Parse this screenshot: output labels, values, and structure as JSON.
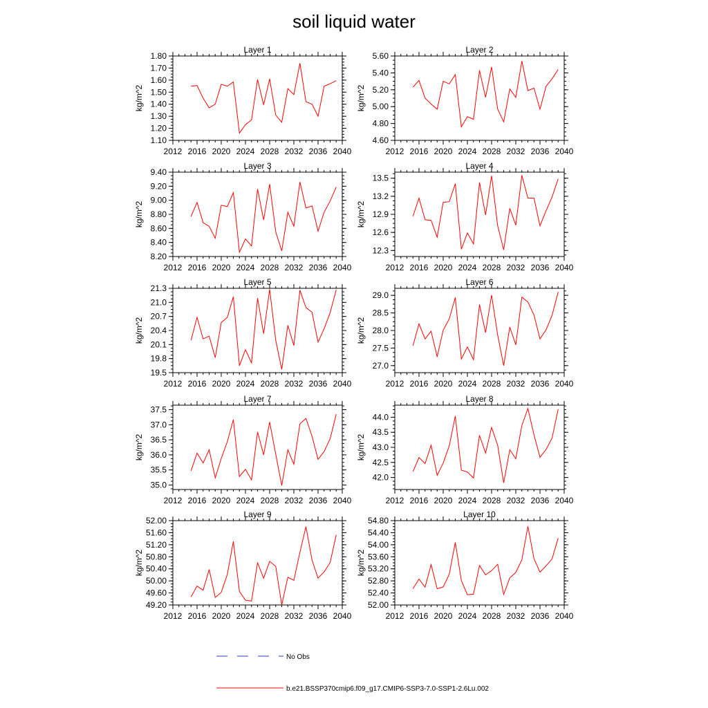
{
  "title": "soil liquid water",
  "legend": [
    {
      "label": "No Obs",
      "color": "#2b3bb8",
      "dash": true
    },
    {
      "label": "b.e21.BSSP370cmip6.f09_g17.CMIP6-SSP3-7.0-SSP1-2.6Lu.002",
      "color": "#ff0000",
      "dash": false
    }
  ],
  "chart_data": [
    {
      "type": "line",
      "title": "Layer 1",
      "ylabel": "kg/m^2",
      "xlim": [
        2012,
        2040
      ],
      "xticks": [
        "2012",
        "2016",
        "2020",
        "2024",
        "2028",
        "2032",
        "2036",
        "2040"
      ],
      "ylim": [
        1.1,
        1.8
      ],
      "yticks": [
        1.1,
        1.2,
        1.3,
        1.4,
        1.5,
        1.6,
        1.7,
        1.8
      ],
      "ydec": 2,
      "series": [
        {
          "color": "#ff0000",
          "x": [
            2015,
            2016,
            2017,
            2018,
            2019,
            2020,
            2021,
            2022,
            2023,
            2024,
            2025,
            2026,
            2027,
            2028,
            2029,
            2030,
            2031,
            2032,
            2033,
            2034,
            2035,
            2036,
            2037,
            2038,
            2039
          ],
          "values": [
            1.55,
            1.555,
            1.45,
            1.37,
            1.4,
            1.565,
            1.55,
            1.585,
            1.16,
            1.23,
            1.27,
            1.605,
            1.395,
            1.61,
            1.31,
            1.25,
            1.53,
            1.48,
            1.74,
            1.42,
            1.4,
            1.3,
            1.55,
            1.57,
            1.595
          ]
        }
      ]
    },
    {
      "type": "line",
      "title": "Layer 2",
      "ylabel": "kg/m^2",
      "xlim": [
        2012,
        2040
      ],
      "xticks": [
        "2012",
        "2016",
        "2020",
        "2024",
        "2028",
        "2032",
        "2036",
        "2040"
      ],
      "ylim": [
        4.6,
        5.6
      ],
      "yticks": [
        4.6,
        4.8,
        5.0,
        5.2,
        5.4,
        5.6
      ],
      "ydec": 2,
      "series": [
        {
          "color": "#ff0000",
          "x": [
            2015,
            2016,
            2017,
            2018,
            2019,
            2020,
            2021,
            2022,
            2023,
            2024,
            2025,
            2026,
            2027,
            2028,
            2029,
            2030,
            2031,
            2032,
            2033,
            2034,
            2035,
            2036,
            2037,
            2038,
            2039
          ],
          "values": [
            5.23,
            5.31,
            5.1,
            5.03,
            4.97,
            5.3,
            5.27,
            5.38,
            4.76,
            4.88,
            4.85,
            5.43,
            5.11,
            5.47,
            4.97,
            4.82,
            5.21,
            5.11,
            5.54,
            5.19,
            5.22,
            4.97,
            5.24,
            5.33,
            5.44
          ]
        }
      ]
    },
    {
      "type": "line",
      "title": "Layer 3",
      "ylabel": "kg/m^2",
      "xlim": [
        2012,
        2040
      ],
      "xticks": [
        "2012",
        "2016",
        "2020",
        "2024",
        "2028",
        "2032",
        "2036",
        "2040"
      ],
      "ylim": [
        8.2,
        9.4
      ],
      "yticks": [
        8.2,
        8.4,
        8.6,
        8.8,
        9.0,
        9.2,
        9.4
      ],
      "ydec": 2,
      "series": [
        {
          "color": "#ff0000",
          "x": [
            2015,
            2016,
            2017,
            2018,
            2019,
            2020,
            2021,
            2022,
            2023,
            2024,
            2025,
            2026,
            2027,
            2028,
            2029,
            2030,
            2031,
            2032,
            2033,
            2034,
            2035,
            2036,
            2037,
            2038,
            2039
          ],
          "values": [
            8.77,
            8.97,
            8.68,
            8.63,
            8.46,
            8.93,
            8.91,
            9.11,
            8.26,
            8.45,
            8.35,
            9.16,
            8.72,
            9.23,
            8.55,
            8.28,
            8.83,
            8.63,
            9.26,
            8.89,
            8.92,
            8.56,
            8.83,
            8.99,
            9.19
          ]
        }
      ]
    },
    {
      "type": "line",
      "title": "Layer 4",
      "ylabel": "kg/m^2",
      "xlim": [
        2012,
        2040
      ],
      "xticks": [
        "2012",
        "2016",
        "2020",
        "2024",
        "2028",
        "2032",
        "2036",
        "2040"
      ],
      "ylim": [
        12.2,
        13.6
      ],
      "yticks": [
        12.3,
        12.6,
        12.9,
        13.2,
        13.5
      ],
      "ydec": 1,
      "series": [
        {
          "color": "#ff0000",
          "x": [
            2015,
            2016,
            2017,
            2018,
            2019,
            2020,
            2021,
            2022,
            2023,
            2024,
            2025,
            2026,
            2027,
            2028,
            2029,
            2030,
            2031,
            2032,
            2033,
            2034,
            2035,
            2036,
            2037,
            2038,
            2039
          ],
          "values": [
            12.87,
            13.17,
            12.81,
            12.8,
            12.52,
            13.1,
            13.11,
            13.41,
            12.32,
            12.59,
            12.41,
            13.43,
            12.89,
            13.54,
            12.71,
            12.31,
            13.0,
            12.72,
            13.55,
            13.17,
            13.17,
            12.71,
            12.96,
            13.19,
            13.49
          ]
        }
      ]
    },
    {
      "type": "line",
      "title": "Layer 5",
      "ylabel": "kg/m^2",
      "xlim": [
        2012,
        2040
      ],
      "xticks": [
        "2012",
        "2016",
        "2020",
        "2024",
        "2028",
        "2032",
        "2036",
        "2040"
      ],
      "ylim": [
        19.5,
        21.3
      ],
      "yticks": [
        19.5,
        19.8,
        20.1,
        20.4,
        20.7,
        21.0,
        21.3
      ],
      "ydec": 1,
      "series": [
        {
          "color": "#ff0000",
          "x": [
            2015,
            2016,
            2017,
            2018,
            2019,
            2020,
            2021,
            2022,
            2023,
            2024,
            2025,
            2026,
            2027,
            2028,
            2029,
            2030,
            2031,
            2032,
            2033,
            2034,
            2035,
            2036,
            2037,
            2038,
            2039
          ],
          "values": [
            20.19,
            20.68,
            20.22,
            20.28,
            19.82,
            20.57,
            20.68,
            21.12,
            19.65,
            19.99,
            19.71,
            21.09,
            20.33,
            21.28,
            20.19,
            19.57,
            20.51,
            20.08,
            21.26,
            20.89,
            20.79,
            20.15,
            20.44,
            20.78,
            21.27
          ]
        }
      ]
    },
    {
      "type": "line",
      "title": "Layer 6",
      "ylabel": "kg/m^2",
      "xlim": [
        2012,
        2040
      ],
      "xticks": [
        "2012",
        "2016",
        "2020",
        "2024",
        "2028",
        "2032",
        "2036",
        "2040"
      ],
      "ylim": [
        26.8,
        29.2
      ],
      "yticks": [
        27.0,
        27.5,
        28.0,
        28.5,
        29.0
      ],
      "ydec": 1,
      "series": [
        {
          "color": "#ff0000",
          "x": [
            2015,
            2016,
            2017,
            2018,
            2019,
            2020,
            2021,
            2022,
            2023,
            2024,
            2025,
            2026,
            2027,
            2028,
            2029,
            2030,
            2031,
            2032,
            2033,
            2034,
            2035,
            2036,
            2037,
            2038,
            2039
          ],
          "values": [
            27.57,
            28.19,
            27.76,
            27.98,
            27.25,
            28.01,
            28.33,
            28.94,
            27.19,
            27.53,
            27.17,
            28.74,
            27.94,
            29.01,
            27.87,
            27.0,
            28.1,
            27.59,
            28.95,
            28.81,
            28.44,
            27.76,
            28.02,
            28.43,
            29.1
          ]
        }
      ]
    },
    {
      "type": "line",
      "title": "Layer 7",
      "ylabel": "kg/m^2",
      "xlim": [
        2012,
        2040
      ],
      "xticks": [
        "2012",
        "2016",
        "2020",
        "2024",
        "2028",
        "2032",
        "2036",
        "2040"
      ],
      "ylim": [
        34.85,
        37.65
      ],
      "yticks": [
        35.0,
        35.5,
        36.0,
        36.5,
        37.0,
        37.5
      ],
      "ydec": 1,
      "series": [
        {
          "color": "#ff0000",
          "x": [
            2015,
            2016,
            2017,
            2018,
            2019,
            2020,
            2021,
            2022,
            2023,
            2024,
            2025,
            2026,
            2027,
            2028,
            2029,
            2030,
            2031,
            2032,
            2033,
            2034,
            2035,
            2036,
            2037,
            2038,
            2039
          ],
          "values": [
            35.47,
            36.06,
            35.73,
            36.17,
            35.24,
            35.88,
            36.44,
            37.17,
            35.28,
            35.52,
            35.17,
            36.76,
            36.0,
            37.09,
            36.02,
            34.98,
            36.17,
            35.69,
            37.03,
            37.21,
            36.62,
            35.85,
            36.11,
            36.54,
            37.35
          ]
        }
      ]
    },
    {
      "type": "line",
      "title": "Layer 8",
      "ylabel": "kg/m^2",
      "xlim": [
        2012,
        2040
      ],
      "xticks": [
        "2012",
        "2016",
        "2020",
        "2024",
        "2028",
        "2032",
        "2036",
        "2040"
      ],
      "ylim": [
        41.6,
        44.4
      ],
      "yticks": [
        42.0,
        42.5,
        43.0,
        43.5,
        44.0
      ],
      "ydec": 1,
      "series": [
        {
          "color": "#ff0000",
          "x": [
            2015,
            2016,
            2017,
            2018,
            2019,
            2020,
            2021,
            2022,
            2023,
            2024,
            2025,
            2026,
            2027,
            2028,
            2029,
            2030,
            2031,
            2032,
            2033,
            2034,
            2035,
            2036,
            2037,
            2038,
            2039
          ],
          "values": [
            42.2,
            42.66,
            42.46,
            43.07,
            42.07,
            42.48,
            43.05,
            44.04,
            42.24,
            42.18,
            41.98,
            43.4,
            42.81,
            43.66,
            43.07,
            41.82,
            42.92,
            42.62,
            43.73,
            44.29,
            43.42,
            42.67,
            42.93,
            43.31,
            44.27
          ]
        }
      ]
    },
    {
      "type": "line",
      "title": "Layer 9",
      "ylabel": "kg/m^2",
      "xlim": [
        2012,
        2040
      ],
      "xticks": [
        "2012",
        "2016",
        "2020",
        "2024",
        "2028",
        "2032",
        "2036",
        "2040"
      ],
      "ylim": [
        49.2,
        52.0
      ],
      "yticks": [
        49.2,
        49.6,
        50.0,
        50.4,
        50.8,
        51.2,
        51.6,
        52.0
      ],
      "ydec": 2,
      "series": [
        {
          "color": "#ff0000",
          "x": [
            2015,
            2016,
            2017,
            2018,
            2019,
            2020,
            2021,
            2022,
            2023,
            2024,
            2025,
            2026,
            2027,
            2028,
            2029,
            2030,
            2031,
            2032,
            2033,
            2034,
            2035,
            2036,
            2037,
            2038,
            2039
          ],
          "values": [
            49.47,
            49.83,
            49.69,
            50.38,
            49.45,
            49.62,
            50.22,
            51.31,
            49.65,
            49.36,
            49.33,
            50.6,
            50.09,
            50.65,
            50.48,
            49.2,
            50.12,
            50.02,
            50.95,
            51.8,
            50.69,
            50.09,
            50.3,
            50.61,
            51.53
          ]
        }
      ]
    },
    {
      "type": "line",
      "title": "Layer 10",
      "ylabel": "kg/m^2",
      "xlim": [
        2012,
        2040
      ],
      "xticks": [
        "2012",
        "2016",
        "2020",
        "2024",
        "2028",
        "2032",
        "2036",
        "2040"
      ],
      "ylim": [
        52.0,
        54.8
      ],
      "yticks": [
        52.0,
        52.4,
        52.8,
        53.2,
        53.6,
        54.0,
        54.4,
        54.8
      ],
      "ydec": 2,
      "series": [
        {
          "color": "#ff0000",
          "x": [
            2015,
            2016,
            2017,
            2018,
            2019,
            2020,
            2021,
            2022,
            2023,
            2024,
            2025,
            2026,
            2027,
            2028,
            2029,
            2030,
            2031,
            2032,
            2033,
            2034,
            2035,
            2036,
            2037,
            2038,
            2039
          ],
          "values": [
            52.54,
            52.86,
            52.59,
            53.34,
            52.54,
            52.6,
            53.02,
            54.08,
            52.81,
            52.34,
            52.36,
            53.31,
            53.0,
            53.14,
            53.35,
            52.35,
            52.9,
            53.08,
            53.5,
            54.61,
            53.54,
            53.09,
            53.3,
            53.53,
            54.22
          ]
        }
      ]
    }
  ]
}
